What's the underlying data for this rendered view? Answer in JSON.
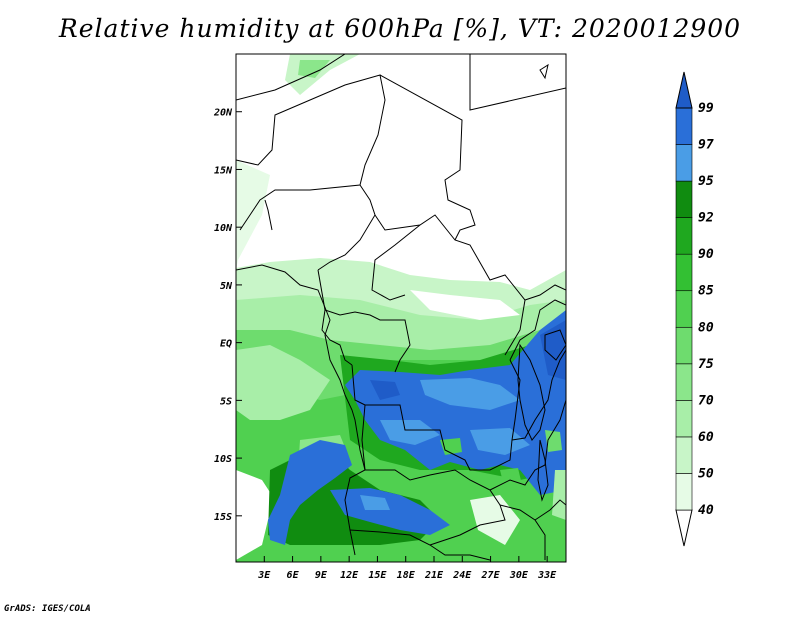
{
  "title": "Relative humidity at 600hPa [%], VT: 2020012900",
  "credit": "GrADS: IGES/COLA",
  "map": {
    "lon_range": [
      0,
      35
    ],
    "lat_range": [
      -19,
      25
    ],
    "lon_ticks": [
      "3E",
      "6E",
      "9E",
      "12E",
      "15E",
      "18E",
      "21E",
      "24E",
      "27E",
      "30E",
      "33E"
    ],
    "lon_tick_values": [
      3,
      6,
      9,
      12,
      15,
      18,
      21,
      24,
      27,
      30,
      33
    ],
    "lat_ticks": [
      "20N",
      "15N",
      "10N",
      "5N",
      "EQ",
      "5S",
      "10S",
      "15S"
    ],
    "lat_tick_values": [
      20,
      15,
      10,
      5,
      0,
      -5,
      -10,
      -15
    ]
  },
  "colorbar": {
    "levels": [
      "40",
      "50",
      "60",
      "70",
      "75",
      "80",
      "85",
      "90",
      "92",
      "95",
      "97",
      "99"
    ],
    "colors": [
      "#ffffff",
      "#e6fbe6",
      "#c8f5c8",
      "#a8eea8",
      "#8be68b",
      "#6edc6e",
      "#50d050",
      "#33c033",
      "#1fa81f",
      "#108c10",
      "#4a9de6",
      "#2a6fd8",
      "#1f5cc8"
    ]
  }
}
